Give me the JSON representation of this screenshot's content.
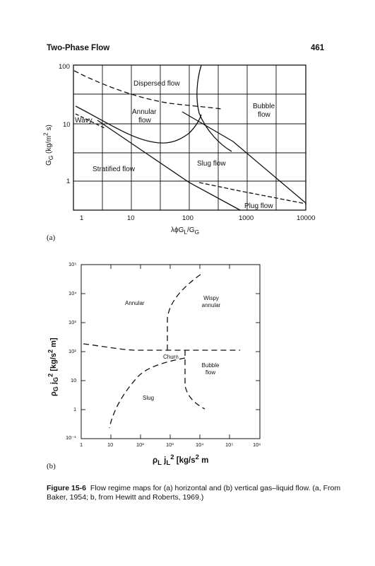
{
  "header": {
    "title": "Two-Phase Flow",
    "page_number": "461"
  },
  "figure_a": {
    "panel": "(a)",
    "ylabel": "Gₒ (kg/m² s)",
    "ylabel_html": "G<sub>G</sub> (kg/m<sup>2</sup> s)",
    "xlabel_html": "λϕG<sub>L</sub>/G<sub>G</sub>",
    "y_ticks": [
      "100",
      "10",
      "1"
    ],
    "x_ticks": [
      "1",
      "10",
      "100",
      "1000",
      "10000"
    ],
    "regions": {
      "dispersed": "Dispersed flow",
      "bubble_1": "Bubble",
      "bubble_2": "flow",
      "annular_1": "Annular",
      "annular_2": "flow",
      "wavy": "Wavy",
      "slug": "Slug flow",
      "stratified": "Stratified flow",
      "plug": "Plug flow"
    }
  },
  "figure_b": {
    "panel": "(b)",
    "y_ticks": [
      "10⁵",
      "10⁴",
      "10³",
      "10²",
      "10",
      "1",
      "10⁻¹"
    ],
    "x_ticks": [
      "1",
      "10",
      "10²",
      "10³",
      "10⁴",
      "10⁵",
      "10⁶"
    ],
    "ylabel_html": "ρ<sub>G</sub> j<sub>G</sub><sup>2</sup> [kg/s<sup>2</sup> m]",
    "xlabel_html": "ρ<sub>L</sub> j<sub>L</sub><sup>2</sup> [kg/s<sup>2</sup> m",
    "regions": {
      "annular": "Annular",
      "wispy_1": "Wispy",
      "wispy_2": "annular",
      "churn": "Churn",
      "bubble_1": "Bubble",
      "bubble_2": "flow",
      "slug": "Slug"
    }
  },
  "caption": {
    "label": "Figure 15-6",
    "text": "Flow regime maps for (a) horizontal and (b) vertical gas–liquid flow. (a, From Baker, 1954; b, from Hewitt and Roberts, 1969.)"
  }
}
